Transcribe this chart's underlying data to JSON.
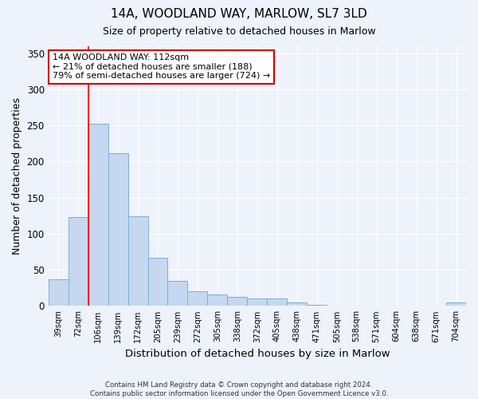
{
  "title1": "14A, WOODLAND WAY, MARLOW, SL7 3LD",
  "title2": "Size of property relative to detached houses in Marlow",
  "xlabel": "Distribution of detached houses by size in Marlow",
  "ylabel": "Number of detached properties",
  "categories": [
    "39sqm",
    "72sqm",
    "106sqm",
    "139sqm",
    "172sqm",
    "205sqm",
    "239sqm",
    "272sqm",
    "305sqm",
    "338sqm",
    "372sqm",
    "405sqm",
    "438sqm",
    "471sqm",
    "505sqm",
    "538sqm",
    "571sqm",
    "604sqm",
    "638sqm",
    "671sqm",
    "704sqm"
  ],
  "values": [
    37,
    123,
    252,
    211,
    124,
    67,
    35,
    20,
    16,
    13,
    10,
    10,
    5,
    2,
    1,
    1,
    1,
    1,
    1,
    1,
    5
  ],
  "bar_color": "#c5d8f0",
  "bar_edge_color": "#7bafd4",
  "annotation_line1": "14A WOODLAND WAY: 112sqm",
  "annotation_line2": "← 21% of detached houses are smaller (188)",
  "annotation_line3": "79% of semi-detached houses are larger (724) →",
  "footer_line1": "Contains HM Land Registry data © Crown copyright and database right 2024.",
  "footer_line2": "Contains public sector information licensed under the Open Government Licence v3.0.",
  "ylim": [
    0,
    360
  ],
  "yticks": [
    0,
    50,
    100,
    150,
    200,
    250,
    300,
    350
  ],
  "background_color": "#eef2fb",
  "plot_bg_color": "#eef2fb",
  "grid_color": "#ffffff",
  "annotation_box_color": "#ffffff",
  "annotation_box_edge": "#cc0000",
  "red_line_bin": 2
}
